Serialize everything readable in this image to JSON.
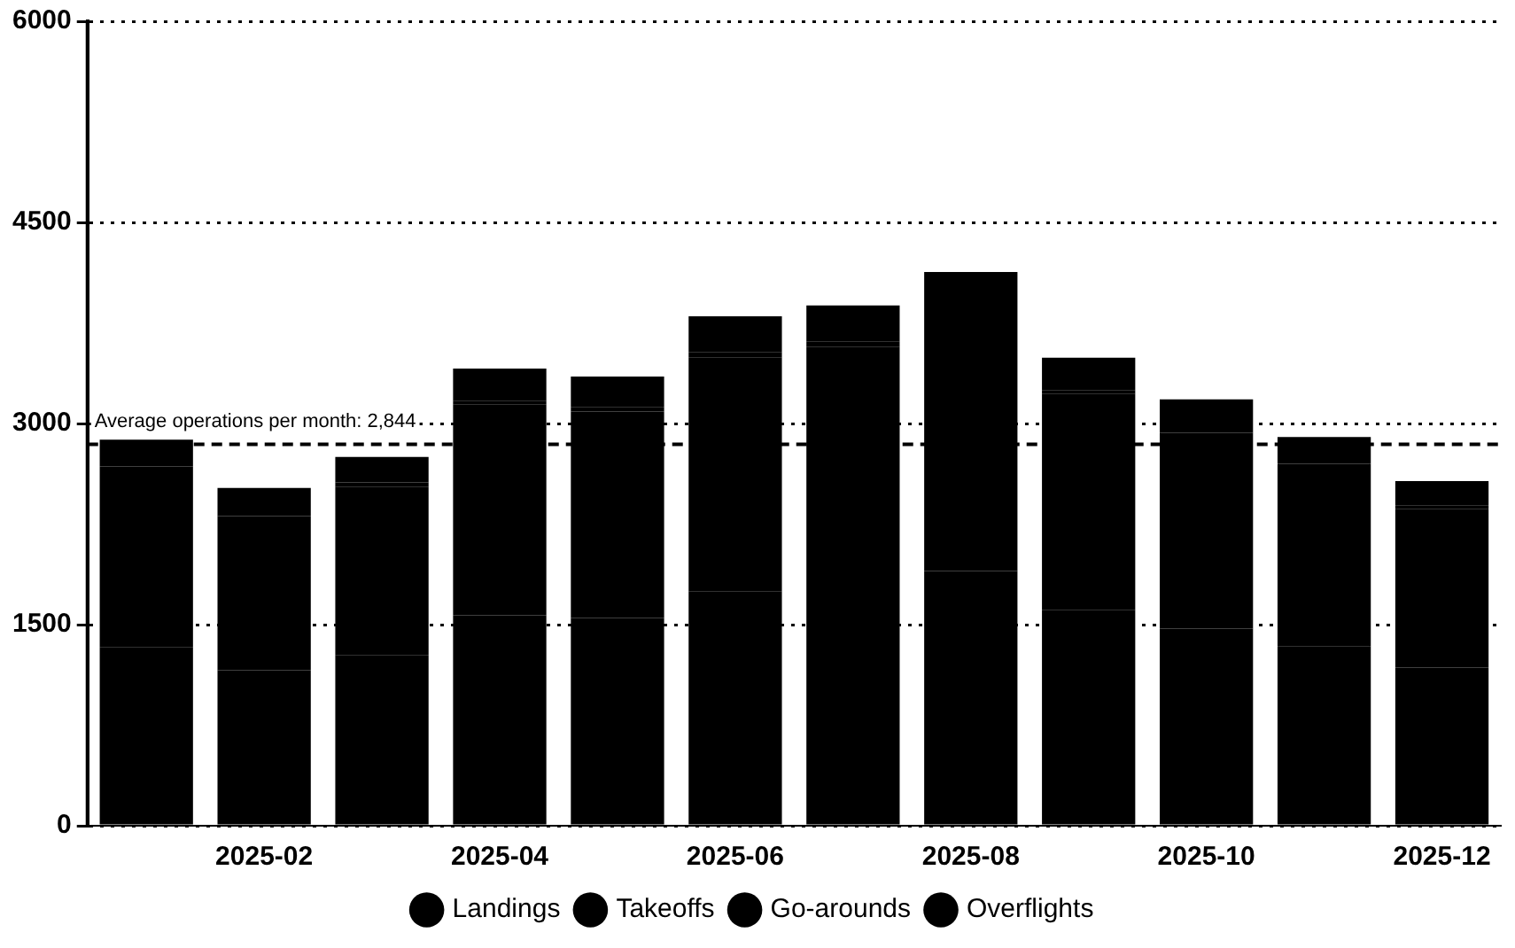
{
  "chart_data": {
    "type": "bar",
    "stacked": true,
    "categories": [
      null,
      "2025-02",
      null,
      "2025-04",
      null,
      "2025-06",
      null,
      "2025-08",
      null,
      "2025-10",
      null,
      "2025-12"
    ],
    "series": [
      {
        "name": "Landings",
        "color": "#000000",
        "values": [
          1330,
          1160,
          1270,
          1570,
          1550,
          1750,
          1790,
          1900,
          1610,
          1470,
          1340,
          1180
        ]
      },
      {
        "name": "Takeoffs",
        "color": "#000000",
        "values": [
          1320,
          1150,
          1260,
          1570,
          1540,
          1740,
          1780,
          1900,
          1610,
          1460,
          1330,
          1180
        ]
      },
      {
        "name": "Go-arounds",
        "color": "#000000",
        "values": [
          30,
          30,
          30,
          30,
          30,
          40,
          40,
          40,
          30,
          30,
          30,
          30
        ]
      },
      {
        "name": "Overflights",
        "color": "#000000",
        "values": [
          200,
          180,
          190,
          240,
          230,
          270,
          270,
          290,
          240,
          220,
          200,
          180
        ]
      }
    ],
    "ylim": [
      0,
      6000
    ],
    "yticks": [
      0,
      1500,
      3000,
      4500,
      6000
    ],
    "grid": "y",
    "legend": "bottom",
    "ref_lines": [
      {
        "axis": "y",
        "value": 2844,
        "label": "Average operations per month: 2,844",
        "color": "#000000",
        "line_style": "dashed"
      }
    ]
  }
}
